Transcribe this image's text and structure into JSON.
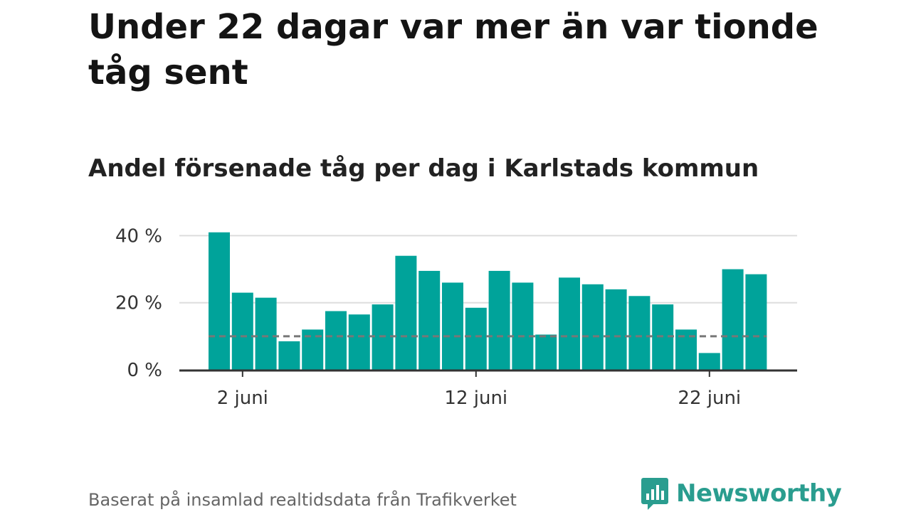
{
  "header": {
    "title": "Under 22 dagar var mer än var tionde tåg sent",
    "subtitle": "Andel försenade tåg per dag i Karlstads kommun"
  },
  "footer": {
    "source": "Baserat på insamlad realtidsdata från Trafikverket",
    "logo_text": "Newsworthy",
    "logo_icon": "bar-chart-speech-bubble-icon"
  },
  "chart_data": {
    "type": "bar",
    "title": "",
    "xlabel": "",
    "ylabel": "",
    "x": [
      1,
      2,
      3,
      4,
      5,
      6,
      7,
      8,
      9,
      10,
      11,
      12,
      13,
      14,
      15,
      16,
      17,
      18,
      19,
      20,
      21,
      22,
      23,
      24
    ],
    "values": [
      41,
      23,
      21.5,
      8.5,
      12,
      17.5,
      16.5,
      19.5,
      34,
      29.5,
      26,
      18.5,
      29.5,
      26,
      10.5,
      27.5,
      25.5,
      24,
      22,
      19.5,
      12,
      5,
      30,
      28.5
    ],
    "ylim": [
      0,
      42
    ],
    "yticks": [
      0,
      20,
      40
    ],
    "ytick_labels": [
      "0 %",
      "20 %",
      "40 %"
    ],
    "xticks": [
      2,
      12,
      22
    ],
    "xtick_labels": [
      "2 juni",
      "12 juni",
      "22 juni"
    ],
    "reference_line": {
      "value": 10,
      "style": "dashed"
    },
    "grid": true,
    "colors": {
      "bar": "#00a39a",
      "reference": "#777777",
      "grid": "#dddddd",
      "axis": "#333333"
    }
  }
}
